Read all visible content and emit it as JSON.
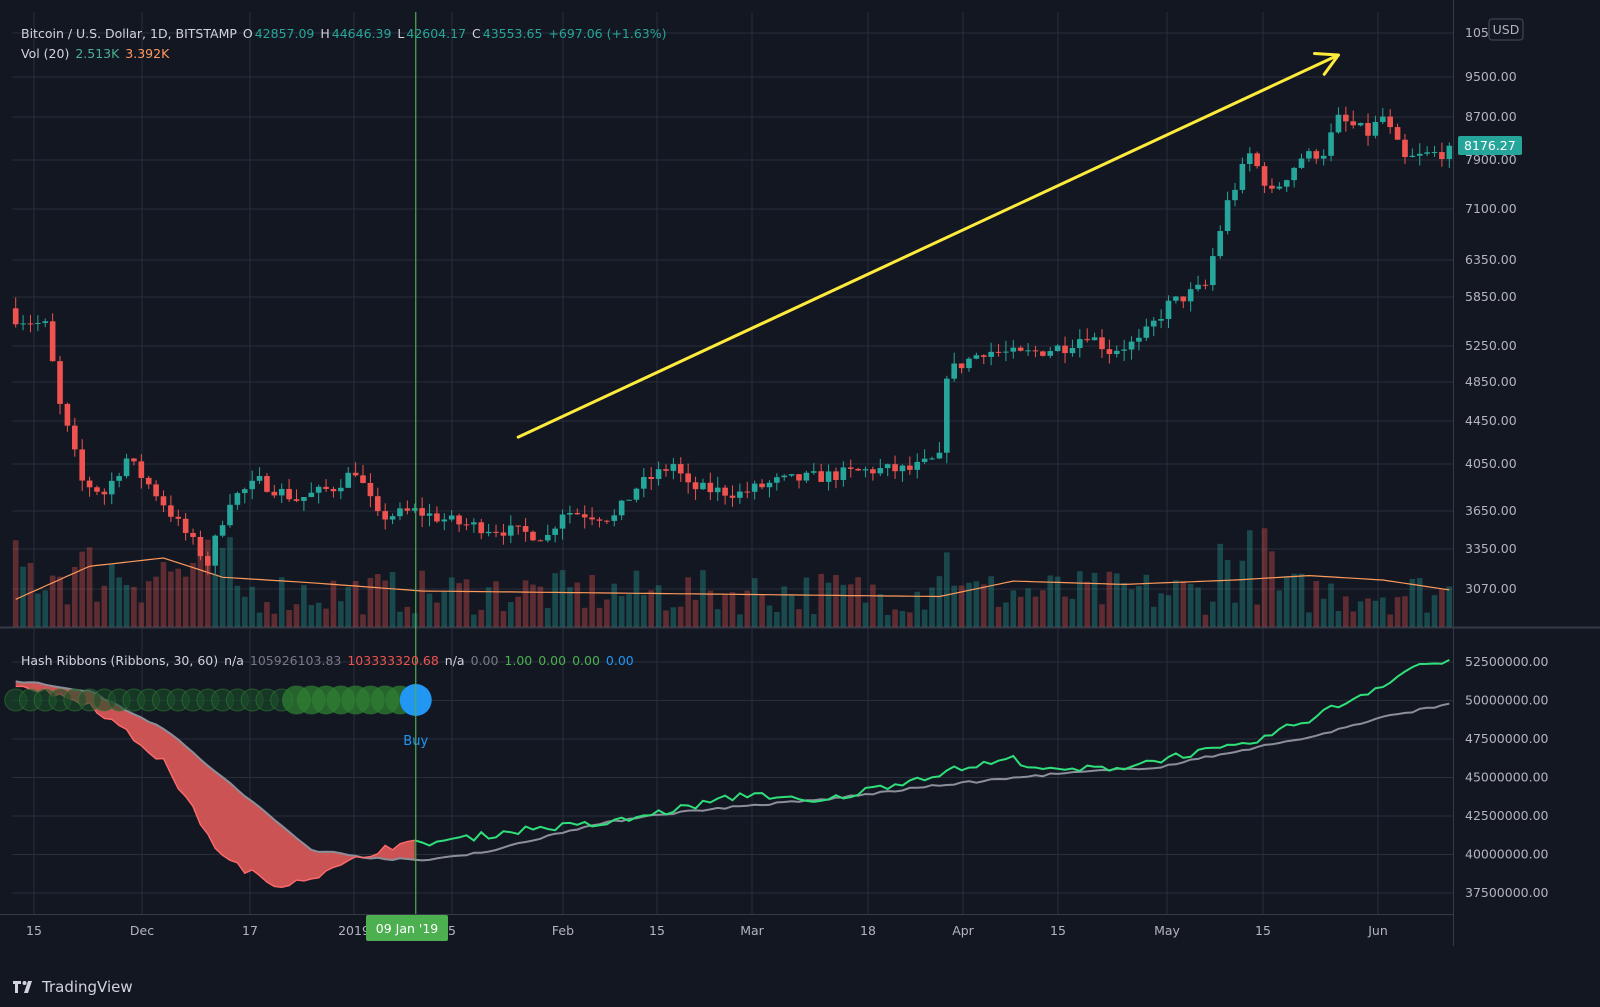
{
  "header": {
    "symbol": "Bitcoin / U.S. Dollar, 1D, BITSTAMP",
    "o_label": "O",
    "o_value": "42857.09",
    "h_label": "H",
    "h_value": "44646.39",
    "l_label": "L",
    "l_value": "42604.17",
    "c_label": "C",
    "c_value": "43553.65",
    "change": "+697.06 (+1.63%)",
    "vol_label": "Vol (20)",
    "vol_value": "2.513K",
    "vol_ma": "3.392K"
  },
  "indicator": {
    "name": "Hash Ribbons (Ribbons, 30, 60)",
    "v1": "n/a",
    "v2": "105926103.83",
    "v3": "103333320.68",
    "v4": "n/a",
    "v5": "0.00",
    "v6": "1.00",
    "v7": "0.00",
    "v8": "0.00",
    "v9": "0.00",
    "buy_label": "Buy"
  },
  "currency": "USD",
  "last_price": "8176.27",
  "crosshair_date": "09 Jan '19",
  "footer": {
    "brand": "TradingView",
    "logo_icon": "tradingview-logo-icon"
  },
  "colors": {
    "up": "#26a69a",
    "down": "#ef5350",
    "background": "#131722",
    "grid": "#2a2e39",
    "fast_ma": "#2fe07a",
    "slow_ma": "#8c8f99",
    "ribbon_fill": "#e05a5a",
    "arrow": "#ffeb3b",
    "crosshair": "#4caf50"
  },
  "chart_data": {
    "type": "candlestick",
    "title": "Bitcoin / U.S. Dollar, 1D, BITSTAMP",
    "x_tick_labels": [
      "15",
      "Dec",
      "17",
      "2019",
      "5",
      "Feb",
      "15",
      "Mar",
      "18",
      "Apr",
      "15",
      "May",
      "15",
      "Jun"
    ],
    "price_axis_labels": [
      "105",
      "9500.00",
      "8700.00",
      "7900.00",
      "7100.00",
      "6350.00",
      "5850.00",
      "5250.00",
      "4850.00",
      "4450.00",
      "4050.00",
      "3650.00",
      "3350.00",
      "3070.00"
    ],
    "indicator_axis_labels": [
      "52500000.00",
      "50000000.00",
      "47500000.00",
      "45000000.00",
      "42500000.00",
      "40000000.00",
      "37500000.00"
    ],
    "price_anchors": [
      {
        "day": 0,
        "close": 5600
      },
      {
        "day": 4,
        "close": 5500
      },
      {
        "day": 6,
        "close": 4600
      },
      {
        "day": 9,
        "close": 3900
      },
      {
        "day": 12,
        "close": 3800
      },
      {
        "day": 15,
        "close": 4100
      },
      {
        "day": 19,
        "close": 3800
      },
      {
        "day": 22,
        "close": 3550
      },
      {
        "day": 26,
        "close": 3250
      },
      {
        "day": 29,
        "close": 3750
      },
      {
        "day": 33,
        "close": 3900
      },
      {
        "day": 38,
        "close": 3750
      },
      {
        "day": 43,
        "close": 3850
      },
      {
        "day": 46,
        "close": 4000
      },
      {
        "day": 49,
        "close": 3600
      },
      {
        "day": 54,
        "close": 3650
      },
      {
        "day": 60,
        "close": 3550
      },
      {
        "day": 66,
        "close": 3500
      },
      {
        "day": 72,
        "close": 3450
      },
      {
        "day": 74,
        "close": 3650
      },
      {
        "day": 81,
        "close": 3600
      },
      {
        "day": 84,
        "close": 3850
      },
      {
        "day": 89,
        "close": 4050
      },
      {
        "day": 91,
        "close": 3850
      },
      {
        "day": 98,
        "close": 3800
      },
      {
        "day": 103,
        "close": 3900
      },
      {
        "day": 110,
        "close": 3950
      },
      {
        "day": 116,
        "close": 4000
      },
      {
        "day": 121,
        "close": 4000
      },
      {
        "day": 125,
        "close": 4100
      },
      {
        "day": 126,
        "close": 4950
      },
      {
        "day": 131,
        "close": 5200
      },
      {
        "day": 136,
        "close": 5150
      },
      {
        "day": 142,
        "close": 5250
      },
      {
        "day": 145,
        "close": 5400
      },
      {
        "day": 148,
        "close": 5200
      },
      {
        "day": 152,
        "close": 5300
      },
      {
        "day": 156,
        "close": 5750
      },
      {
        "day": 161,
        "close": 6000
      },
      {
        "day": 164,
        "close": 7200
      },
      {
        "day": 167,
        "close": 8000
      },
      {
        "day": 170,
        "close": 7350
      },
      {
        "day": 174,
        "close": 7950
      },
      {
        "day": 177,
        "close": 8050
      },
      {
        "day": 179,
        "close": 8650
      },
      {
        "day": 183,
        "close": 8400
      },
      {
        "day": 185,
        "close": 8700
      },
      {
        "day": 188,
        "close": 7900
      },
      {
        "day": 191,
        "close": 8000
      },
      {
        "day": 194,
        "close": 8050
      }
    ],
    "hash_fast": [
      {
        "day": 0,
        "v": 51100000
      },
      {
        "day": 10,
        "v": 49800000
      },
      {
        "day": 20,
        "v": 46000000
      },
      {
        "day": 28,
        "v": 39800000
      },
      {
        "day": 35,
        "v": 38000000
      },
      {
        "day": 42,
        "v": 38800000
      },
      {
        "day": 50,
        "v": 40500000
      },
      {
        "day": 60,
        "v": 41000000
      },
      {
        "day": 70,
        "v": 41700000
      },
      {
        "day": 80,
        "v": 42000000
      },
      {
        "day": 90,
        "v": 43000000
      },
      {
        "day": 100,
        "v": 44000000
      },
      {
        "day": 108,
        "v": 43300000
      },
      {
        "day": 118,
        "v": 44500000
      },
      {
        "day": 128,
        "v": 45600000
      },
      {
        "day": 135,
        "v": 46200000
      },
      {
        "day": 140,
        "v": 45400000
      },
      {
        "day": 150,
        "v": 45700000
      },
      {
        "day": 158,
        "v": 46500000
      },
      {
        "day": 166,
        "v": 47000000
      },
      {
        "day": 175,
        "v": 48800000
      },
      {
        "day": 184,
        "v": 50800000
      },
      {
        "day": 190,
        "v": 52400000
      },
      {
        "day": 194,
        "v": 52400000
      }
    ],
    "hash_slow": [
      {
        "day": 0,
        "v": 51300000
      },
      {
        "day": 10,
        "v": 50600000
      },
      {
        "day": 20,
        "v": 48200000
      },
      {
        "day": 30,
        "v": 44200000
      },
      {
        "day": 40,
        "v": 40300000
      },
      {
        "day": 48,
        "v": 39800000
      },
      {
        "day": 55,
        "v": 39600000
      },
      {
        "day": 65,
        "v": 40300000
      },
      {
        "day": 75,
        "v": 41600000
      },
      {
        "day": 85,
        "v": 42500000
      },
      {
        "day": 95,
        "v": 43000000
      },
      {
        "day": 110,
        "v": 43600000
      },
      {
        "day": 125,
        "v": 44500000
      },
      {
        "day": 140,
        "v": 45200000
      },
      {
        "day": 155,
        "v": 45700000
      },
      {
        "day": 165,
        "v": 46700000
      },
      {
        "day": 175,
        "v": 47600000
      },
      {
        "day": 185,
        "v": 48900000
      },
      {
        "day": 194,
        "v": 49800000
      }
    ],
    "volume_ma_anchors": [
      {
        "day": 0,
        "v": 0.25
      },
      {
        "day": 10,
        "v": 0.85
      },
      {
        "day": 20,
        "v": 1.0
      },
      {
        "day": 28,
        "v": 0.65
      },
      {
        "day": 40,
        "v": 0.55
      },
      {
        "day": 55,
        "v": 0.4
      },
      {
        "day": 90,
        "v": 0.35
      },
      {
        "day": 125,
        "v": 0.3
      },
      {
        "day": 135,
        "v": 0.58
      },
      {
        "day": 150,
        "v": 0.52
      },
      {
        "day": 165,
        "v": 0.6
      },
      {
        "day": 175,
        "v": 0.68
      },
      {
        "day": 185,
        "v": 0.6
      },
      {
        "day": 194,
        "v": 0.42
      }
    ],
    "buy_signal_day": 54,
    "arrow": {
      "from": {
        "day": 68,
        "price": 4300
      },
      "to": {
        "day": 179,
        "price": 10000
      }
    }
  }
}
